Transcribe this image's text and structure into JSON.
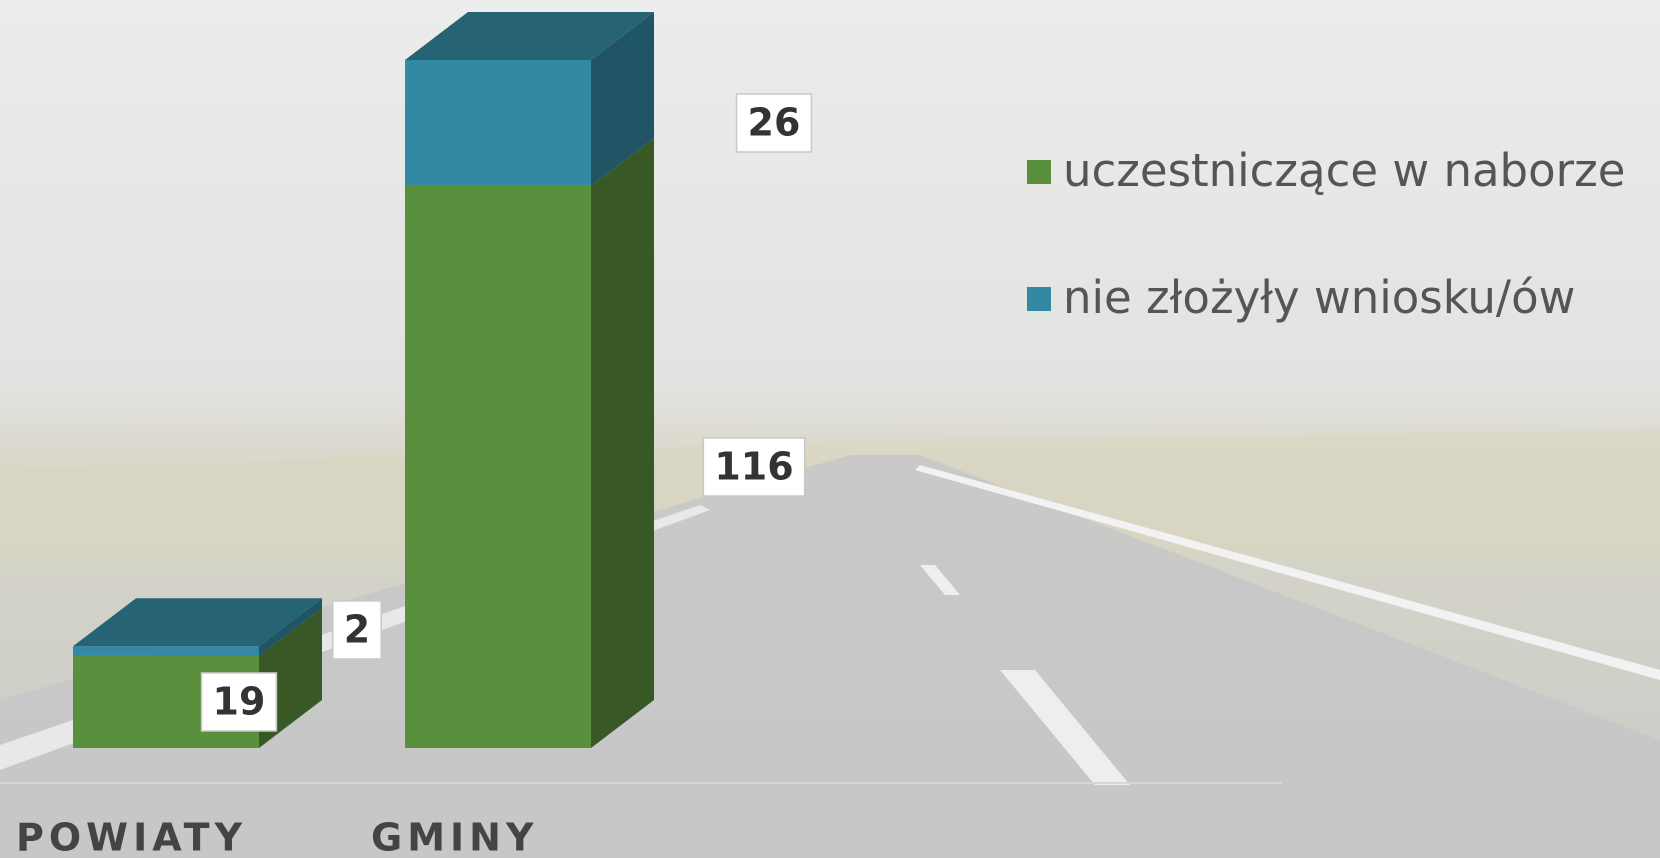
{
  "chart_data": {
    "type": "bar3d_stacked",
    "categories": [
      "POWIATY",
      "GMINY"
    ],
    "series": [
      {
        "name": "uczestniczące w naborze",
        "color": "#5a8f3e",
        "values": [
          19,
          116
        ]
      },
      {
        "name": "nie złożyły wniosku/ów",
        "color": "#3389a3",
        "values": [
          2,
          26
        ]
      }
    ],
    "legend": "right"
  }
}
